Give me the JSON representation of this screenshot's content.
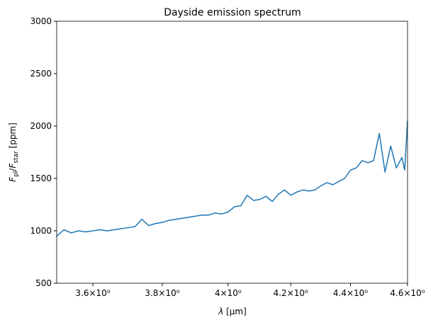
{
  "chart_data": {
    "type": "line",
    "title": "Dayside emission spectrum",
    "xlabel": [
      "λ",
      " [μm]"
    ],
    "ylabel": [
      "F",
      "pl",
      "/",
      "F",
      "star",
      " [ppm]"
    ],
    "xscale": "log",
    "xlim": [
      3.5,
      4.6
    ],
    "xticks": [
      {
        "value": 3.6,
        "label": "3.6×10⁰"
      },
      {
        "value": 3.8,
        "label": "3.8×10⁰"
      },
      {
        "value": 4.0,
        "label": "4×10⁰"
      },
      {
        "value": 4.2,
        "label": "4.2×10⁰"
      },
      {
        "value": 4.4,
        "label": "4.4×10⁰"
      },
      {
        "value": 4.6,
        "label": "4.6×10⁰"
      }
    ],
    "ylim": [
      500,
      3000
    ],
    "yticks": [
      500,
      1000,
      1500,
      2000,
      2500,
      3000
    ],
    "grid": false,
    "x": [
      3.5,
      3.52,
      3.54,
      3.56,
      3.58,
      3.6,
      3.62,
      3.64,
      3.66,
      3.68,
      3.7,
      3.72,
      3.74,
      3.76,
      3.78,
      3.8,
      3.82,
      3.84,
      3.86,
      3.88,
      3.9,
      3.92,
      3.94,
      3.96,
      3.98,
      4.0,
      4.02,
      4.04,
      4.06,
      4.08,
      4.1,
      4.12,
      4.14,
      4.16,
      4.18,
      4.2,
      4.22,
      4.24,
      4.26,
      4.28,
      4.3,
      4.32,
      4.34,
      4.36,
      4.38,
      4.4,
      4.42,
      4.44,
      4.46,
      4.48,
      4.5,
      4.52,
      4.54,
      4.56,
      4.58,
      4.59,
      4.6
    ],
    "series": [
      {
        "color": "#1f77b4",
        "values": [
          950,
          1010,
          980,
          1000,
          990,
          1000,
          1010,
          1000,
          1010,
          1020,
          1030,
          1040,
          1110,
          1050,
          1070,
          1080,
          1100,
          1110,
          1120,
          1130,
          1140,
          1150,
          1150,
          1170,
          1160,
          1180,
          1230,
          1240,
          1340,
          1290,
          1300,
          1330,
          1280,
          1350,
          1390,
          1340,
          1370,
          1390,
          1380,
          1390,
          1430,
          1460,
          1440,
          1470,
          1500,
          1580,
          1600,
          1670,
          1650,
          1670,
          1930,
          1560,
          1810,
          1600,
          1700,
          1580,
          2050
        ]
      }
    ]
  }
}
